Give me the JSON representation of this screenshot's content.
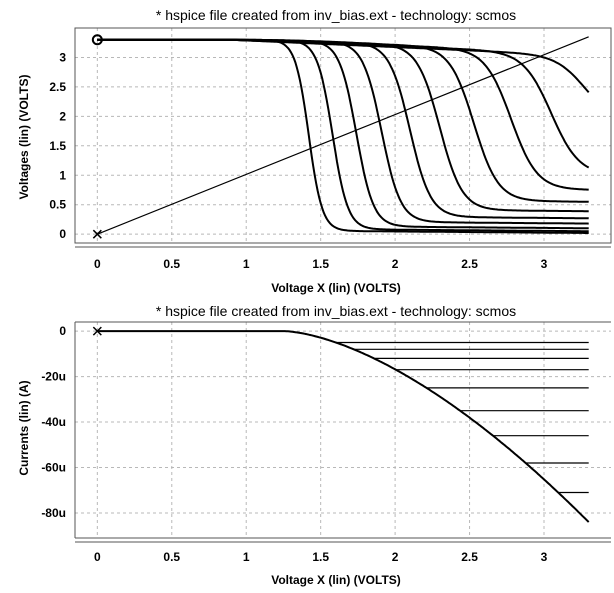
{
  "chart_data": [
    {
      "type": "line",
      "title": "* hspice file created from inv_bias.ext - technology: scmos",
      "xlabel": "Voltage X (lin) (VOLTS)",
      "ylabel": "Voltages (lin)  (VOLTS)",
      "xlim": [
        -0.15,
        3.45
      ],
      "ylim": [
        -0.15,
        3.5
      ],
      "xticks": [
        "0",
        "0.5",
        "1",
        "1.5",
        "2",
        "2.5",
        "3"
      ],
      "xtick_values": [
        0,
        0.5,
        1,
        1.5,
        2,
        2.5,
        3
      ],
      "yticks": [
        "0",
        "0.5",
        "1",
        "1.5",
        "2",
        "2.5",
        "3"
      ],
      "ytick_values": [
        0,
        0.5,
        1,
        1.5,
        2,
        2.5,
        3
      ],
      "grid": true,
      "vdd": 3.3,
      "family": {
        "switch_points": [
          1.42,
          1.58,
          1.74,
          1.91,
          2.1,
          2.3,
          2.53,
          2.78,
          3.05,
          3.28
        ],
        "final_low": [
          0.02,
          0.05,
          0.1,
          0.18,
          0.27,
          0.39,
          0.55,
          0.75,
          1.0,
          1.9
        ],
        "final_high": [
          3.3,
          3.27,
          3.24,
          3.21,
          3.18,
          3.15,
          3.12,
          3.09,
          3.06,
          3.03
        ]
      },
      "diagonal": {
        "x": [
          0,
          3.3
        ],
        "y": [
          0,
          3.35
        ]
      },
      "markers": [
        {
          "symbol": "circle",
          "x": 0,
          "y": 3.3
        },
        {
          "symbol": "x",
          "x": 0,
          "y": 0
        }
      ]
    },
    {
      "type": "line",
      "title": "* hspice file created from inv_bias.ext - technology: scmos",
      "xlabel": "Voltage X (lin) (VOLTS)",
      "ylabel": "Currents (lin) (A)",
      "xlim": [
        -0.15,
        3.45
      ],
      "ylim": [
        -91,
        4
      ],
      "xticks": [
        "0",
        "0.5",
        "1",
        "1.5",
        "2",
        "2.5",
        "3"
      ],
      "xtick_values": [
        0,
        0.5,
        1,
        1.5,
        2,
        2.5,
        3
      ],
      "yticks": [
        "0",
        "-20u",
        "-40u",
        "-60u",
        "-80u"
      ],
      "ytick_values": [
        0,
        -20,
        -40,
        -60,
        -80
      ],
      "grid": true,
      "envelope": {
        "onset": 1.25,
        "end_x": 3.3,
        "end_y": -84
      },
      "saturation_levels": [
        -5,
        -8,
        -12,
        -17,
        -25,
        -35,
        -46,
        -58,
        -71
      ],
      "markers": [
        {
          "symbol": "x",
          "x": 0,
          "y": 0
        }
      ]
    }
  ]
}
